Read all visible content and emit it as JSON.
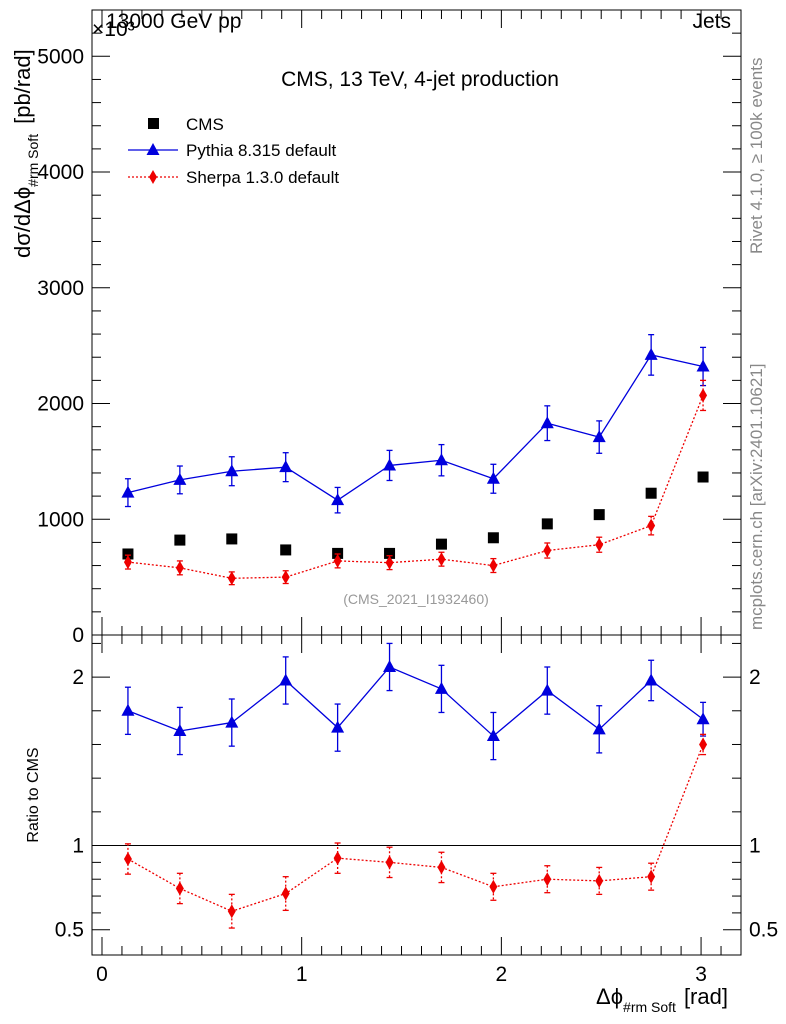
{
  "header": {
    "left_label": "13000 GeV pp",
    "right_label": "Jets",
    "y_exponent": "×10³"
  },
  "side_labels": {
    "rivet": "Rivet 4.1.0, ≥ 100k events",
    "mcplots": "mcplots.cern.ch [arXiv:2401.10621]"
  },
  "chart_data": [
    {
      "type": "scatter",
      "panel": "main",
      "title": "CMS, 13 TeV, 4-jet production",
      "ylabel": "dσ/dΔϕ",
      "ylabel_sub": "#rm Soft",
      "ylabel_unit": "[pb/rad]",
      "watermark": "(CMS_2021_I1932460)",
      "xlim": [
        -0.05,
        3.2
      ],
      "ylim": [
        0,
        5400
      ],
      "yticks": [
        0,
        1000,
        2000,
        3000,
        4000,
        5000
      ],
      "ytick_labels": [
        "0",
        "1000",
        "2000",
        "3000",
        "4000",
        "5000"
      ],
      "x": [
        0.13,
        0.39,
        0.65,
        0.92,
        1.18,
        1.44,
        1.7,
        1.96,
        2.23,
        2.49,
        2.75,
        3.01
      ],
      "legend_position": "top-left",
      "series": [
        {
          "name": "CMS",
          "color": "#000000",
          "marker": "square",
          "values": [
            700,
            820,
            830,
            735,
            705,
            705,
            785,
            840,
            960,
            1040,
            1225,
            1365
          ],
          "errors": [
            0,
            0,
            0,
            0,
            0,
            0,
            0,
            0,
            0,
            0,
            0,
            0
          ]
        },
        {
          "name": "Pythia 8.315 default",
          "color": "#0000dd",
          "marker": "triangle",
          "line": "solid",
          "values": [
            1230,
            1340,
            1415,
            1450,
            1165,
            1465,
            1510,
            1350,
            1830,
            1710,
            2420,
            2320
          ],
          "errors": [
            120,
            120,
            125,
            125,
            110,
            130,
            135,
            125,
            150,
            140,
            175,
            165
          ]
        },
        {
          "name": "Sherpa 1.3.0 default",
          "color": "#ee0000",
          "marker": "diamond",
          "line": "dotted",
          "values": [
            630,
            580,
            490,
            500,
            640,
            625,
            655,
            600,
            730,
            780,
            945,
            2070
          ],
          "errors": [
            60,
            60,
            55,
            55,
            60,
            60,
            60,
            60,
            65,
            65,
            80,
            130
          ]
        }
      ]
    },
    {
      "type": "scatter",
      "panel": "ratio",
      "ylabel": "Ratio to CMS",
      "xlabel": "Δϕ",
      "xlabel_sub": "#rm Soft",
      "xlabel_unit": "[rad]",
      "xlim": [
        -0.05,
        3.2
      ],
      "ylim": [
        0.35,
        2.25
      ],
      "yticks": [
        0.5,
        1,
        2
      ],
      "ytick_labels": [
        "0.5",
        "1",
        "2"
      ],
      "xticks": [
        0,
        1,
        2,
        3
      ],
      "xtick_labels": [
        "0",
        "1",
        "2",
        "3"
      ],
      "reference_line": 1,
      "x": [
        0.13,
        0.39,
        0.65,
        0.92,
        1.18,
        1.44,
        1.7,
        1.96,
        2.23,
        2.49,
        2.75,
        3.01
      ],
      "series": [
        {
          "name": "Pythia 8.315 default",
          "color": "#0000dd",
          "marker": "triangle",
          "line": "solid",
          "values": [
            1.8,
            1.68,
            1.73,
            1.98,
            1.7,
            2.06,
            1.93,
            1.65,
            1.92,
            1.69,
            1.98,
            1.75
          ],
          "errors": [
            0.14,
            0.14,
            0.14,
            0.14,
            0.14,
            0.14,
            0.14,
            0.14,
            0.14,
            0.14,
            0.12,
            0.1
          ]
        },
        {
          "name": "Sherpa 1.3.0 default",
          "color": "#ee0000",
          "marker": "diamond",
          "line": "dotted",
          "values": [
            0.92,
            0.745,
            0.61,
            0.715,
            0.925,
            0.9,
            0.87,
            0.755,
            0.8,
            0.79,
            0.815,
            1.6
          ],
          "errors": [
            0.09,
            0.09,
            0.1,
            0.1,
            0.09,
            0.09,
            0.09,
            0.08,
            0.08,
            0.08,
            0.08,
            0.06
          ]
        }
      ]
    }
  ]
}
